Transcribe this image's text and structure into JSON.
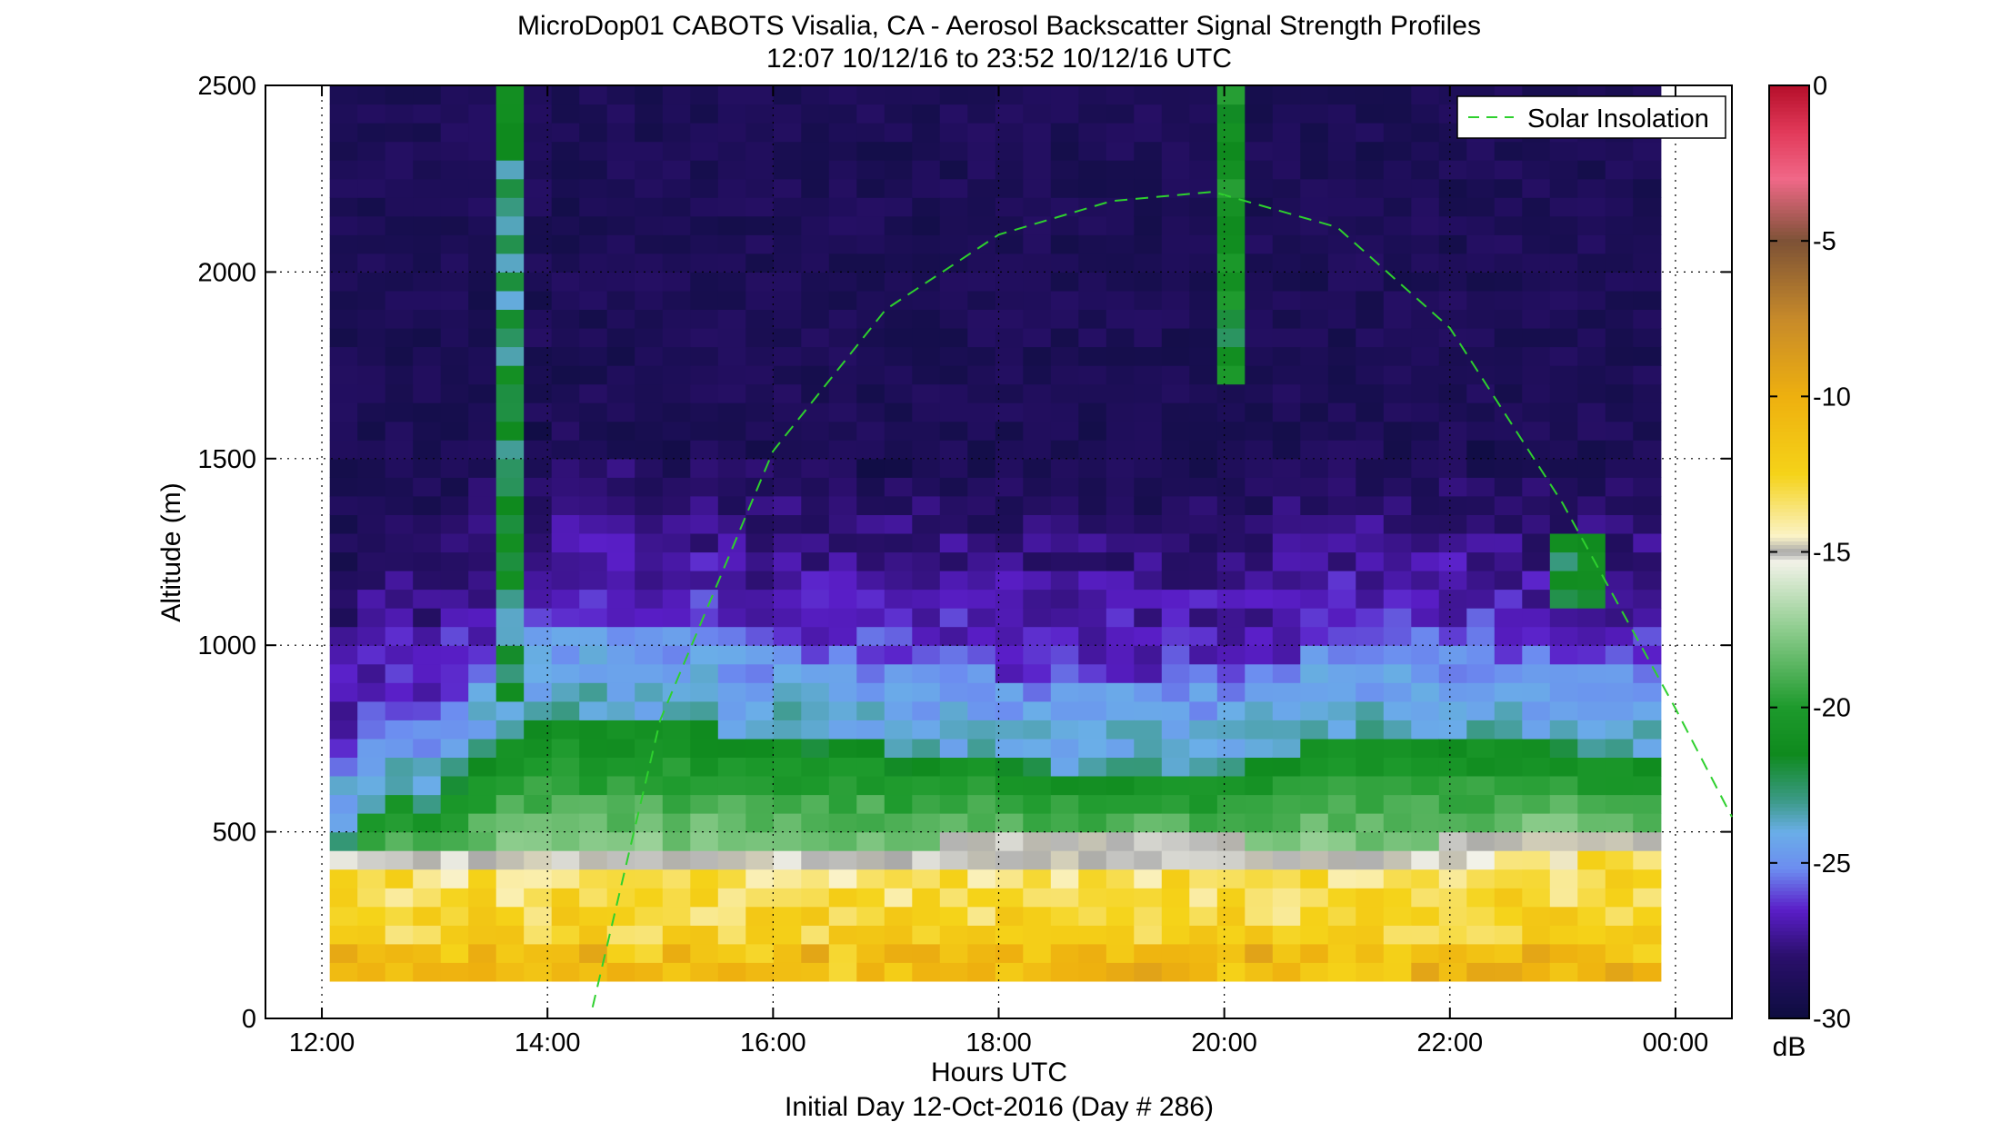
{
  "chart_data": {
    "type": "heatmap",
    "title_line1": "MicroDop01 CABOTS Visalia, CA - Aerosol Backscatter Signal Strength Profiles",
    "title_line2": "12:07 10/12/16 to 23:52 10/12/16  UTC",
    "xlabel": "Hours UTC",
    "xlabel2": "Initial Day 12-Oct-2016 (Day # 286)",
    "ylabel": "Altitude (m)",
    "xlim": [
      11.5,
      24.5
    ],
    "ylim": [
      0,
      2500
    ],
    "x_ticks": [
      {
        "value": 12,
        "label": "12:00"
      },
      {
        "value": 14,
        "label": "14:00"
      },
      {
        "value": 16,
        "label": "16:00"
      },
      {
        "value": 18,
        "label": "18:00"
      },
      {
        "value": 20,
        "label": "20:00"
      },
      {
        "value": 22,
        "label": "22:00"
      },
      {
        "value": 24,
        "label": "00:00"
      }
    ],
    "y_ticks": [
      {
        "value": 0,
        "label": "0"
      },
      {
        "value": 500,
        "label": "500"
      },
      {
        "value": 1000,
        "label": "1000"
      },
      {
        "value": 1500,
        "label": "1500"
      },
      {
        "value": 2000,
        "label": "2000"
      },
      {
        "value": 2500,
        "label": "2500"
      }
    ],
    "grid": "dotted",
    "colorbar": {
      "label": "dB",
      "range": [
        -30,
        0
      ],
      "ticks": [
        {
          "value": 0,
          "label": "0"
        },
        {
          "value": -5,
          "label": "-5"
        },
        {
          "value": -10,
          "label": "-10"
        },
        {
          "value": -15,
          "label": "-15"
        },
        {
          "value": -20,
          "label": "-20"
        },
        {
          "value": -25,
          "label": "-25"
        },
        {
          "value": -30,
          "label": "-30"
        }
      ],
      "stops": [
        {
          "value": -30,
          "color": "#0d0d3f"
        },
        {
          "value": -28,
          "color": "#2a0f6b"
        },
        {
          "value": -26.5,
          "color": "#5a1ec8"
        },
        {
          "value": -25.2,
          "color": "#6c8cf0"
        },
        {
          "value": -24,
          "color": "#6aaee8"
        },
        {
          "value": -23,
          "color": "#3c9a88"
        },
        {
          "value": -21.5,
          "color": "#0f8a1e"
        },
        {
          "value": -20,
          "color": "#1d9a2c"
        },
        {
          "value": -17.5,
          "color": "#8dcc8d"
        },
        {
          "value": -15.3,
          "color": "#f2f2e8"
        },
        {
          "value": -15,
          "color": "#a8a8a8"
        },
        {
          "value": -14.5,
          "color": "#fbf3c8"
        },
        {
          "value": -12.5,
          "color": "#f5d319"
        },
        {
          "value": -10,
          "color": "#eeb00f"
        },
        {
          "value": -7.5,
          "color": "#c78a2a"
        },
        {
          "value": -5,
          "color": "#7d5236"
        },
        {
          "value": -3,
          "color": "#f06888"
        },
        {
          "value": -1.5,
          "color": "#e23a5a"
        },
        {
          "value": 0,
          "color": "#b50f2a"
        }
      ]
    },
    "heatmap": {
      "x_start": 12.07,
      "x_end": 23.87,
      "y_bottom": 100,
      "y_top": 2500,
      "n_cols": 48,
      "n_rows": 48,
      "boundary_layer_top_m": [
        700,
        800,
        820,
        780,
        870,
        950,
        1000,
        1050,
        1050,
        1050,
        1050,
        1040,
        1040,
        1020,
        1000,
        990,
        990,
        970,
        960,
        960,
        940,
        940,
        930,
        930,
        920,
        910,
        900,
        900,
        900,
        900,
        900,
        900,
        900,
        920,
        950,
        980,
        1000,
        1000,
        1000,
        1000,
        980,
        980,
        960,
        960,
        960,
        950,
        930,
        920
      ],
      "surface_layer_top_m": [
        400,
        400,
        400,
        400,
        400,
        400,
        400,
        400,
        400,
        400,
        400,
        400,
        400,
        400,
        400,
        400,
        400,
        400,
        410,
        410,
        410,
        410,
        420,
        420,
        420,
        420,
        420,
        420,
        420,
        420,
        420,
        420,
        420,
        410,
        400,
        400,
        400,
        400,
        400,
        400,
        420,
        420,
        430,
        440,
        450,
        450,
        450,
        450
      ],
      "plume_events": [
        {
          "center_hour": 13.5,
          "base_m": 600,
          "top_m": 2500,
          "peak_db": -22.5
        },
        {
          "center_hour": 19.95,
          "base_m": 1700,
          "top_m": 2500,
          "peak_db": -21
        },
        {
          "center_hour": 23.0,
          "base_m": 1100,
          "top_m": 1300,
          "peak_db": -21.5
        }
      ]
    },
    "series": [
      {
        "name": "Solar Insolation",
        "style": "dashed",
        "color": "#2ed02e",
        "x": [
          14.4,
          15.0,
          16.0,
          17.0,
          18.0,
          19.0,
          19.9,
          21.0,
          22.0,
          23.0,
          24.0,
          24.5
        ],
        "y": [
          30,
          800,
          1520,
          1900,
          2100,
          2190,
          2215,
          2120,
          1850,
          1380,
          830,
          540
        ]
      }
    ],
    "legend": {
      "placement": "top-right",
      "entries": [
        "Solar Insolation"
      ]
    }
  }
}
